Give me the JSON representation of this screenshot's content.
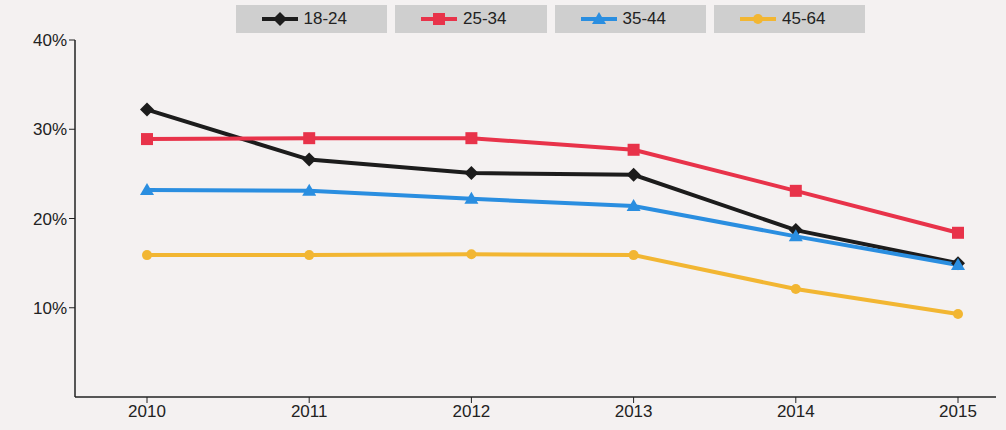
{
  "chart_data": {
    "type": "line",
    "categories": [
      "2010",
      "2011",
      "2012",
      "2013",
      "2014",
      "2015"
    ],
    "series": [
      {
        "name": "18-24",
        "color": "#1c1c1c",
        "marker": "diamond",
        "values": [
          32.2,
          26.6,
          25.1,
          24.9,
          18.7,
          15.0
        ]
      },
      {
        "name": "25-34",
        "color": "#e8334a",
        "marker": "square",
        "values": [
          28.9,
          29.0,
          29.0,
          27.7,
          23.1,
          18.4
        ]
      },
      {
        "name": "35-44",
        "color": "#2a8ee0",
        "marker": "triangle",
        "values": [
          23.2,
          23.1,
          22.2,
          21.4,
          18.0,
          14.8
        ]
      },
      {
        "name": "45-64",
        "color": "#f2b632",
        "marker": "circle",
        "values": [
          15.9,
          15.9,
          16.0,
          15.9,
          12.1,
          9.3
        ]
      }
    ],
    "ylim": [
      0,
      40
    ],
    "yticks": [
      {
        "value": 10,
        "label": "10%"
      },
      {
        "value": 20,
        "label": "20%"
      },
      {
        "value": 30,
        "label": "30%"
      },
      {
        "value": 40,
        "label": "40%"
      }
    ],
    "grid": false,
    "legend": "top"
  }
}
